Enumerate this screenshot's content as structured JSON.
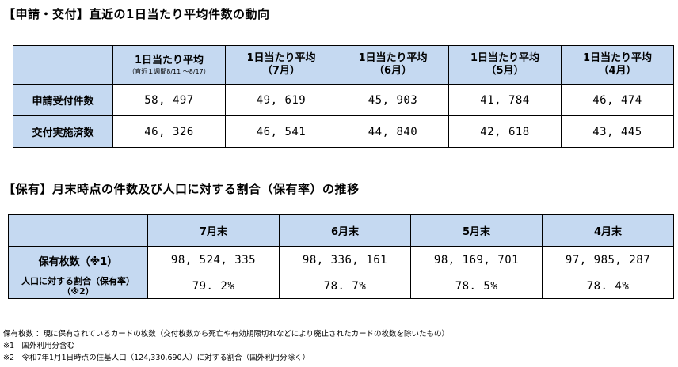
{
  "section1": {
    "title": "【申請・交付】直近の1日当たり平均件数の動向",
    "columns": [
      {
        "main": "1日当たり平均",
        "sub": "（直近１週間8/11 ～8/17）"
      },
      {
        "main": "1日当たり平均",
        "paren": "（7月）"
      },
      {
        "main": "1日当たり平均",
        "paren": "（6月）"
      },
      {
        "main": "1日当たり平均",
        "paren": "（5月）"
      },
      {
        "main": "1日当たり平均",
        "paren": "（4月）"
      }
    ],
    "rows": [
      {
        "label": "申請受付件数",
        "values": [
          "58, 497",
          "49, 619",
          "45, 903",
          "41, 784",
          "46, 474"
        ]
      },
      {
        "label": "交付実施済数",
        "values": [
          "46, 326",
          "46, 541",
          "44, 840",
          "42, 618",
          "43, 445"
        ]
      }
    ]
  },
  "section2": {
    "title": "【保有】月末時点の件数及び人口に対する割合（保有率）の推移",
    "columns": [
      "7月末",
      "6月末",
      "5月末",
      "4月末"
    ],
    "rows": [
      {
        "label": "保有枚数（※1）",
        "values": [
          "98, 524, 335",
          "98, 336, 161",
          "98, 169, 701",
          "97, 985, 287"
        ]
      },
      {
        "label_line1": "人口に対する割合（保有率）",
        "label_line2": "（※2）",
        "values": [
          "79. 2%",
          "78. 7%",
          "78. 5%",
          "78. 4%"
        ]
      }
    ]
  },
  "notes": [
    "保有枚数 ：現に保有されているカードの枚数（交付枚数から死亡や有効期限切れなどにより廃止されたカードの枚数を除いたもの）",
    "※1　国外利用分含む",
    "※2　令和7年1月1日時点の住基人口（124,330,690人）に対する割合（国外利用分除く）"
  ]
}
